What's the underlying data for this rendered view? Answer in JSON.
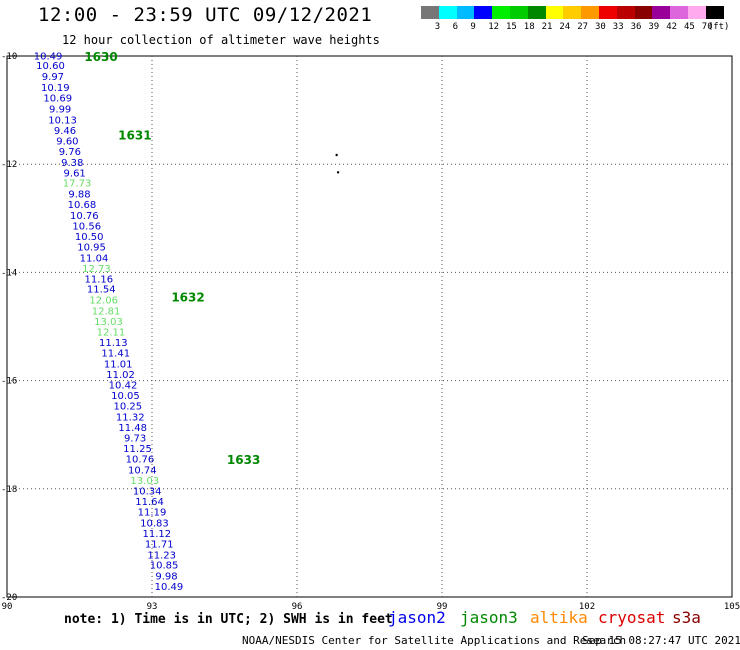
{
  "header": {
    "title": "12:00 - 23:59 UTC 09/12/2021",
    "subtitle": "12 hour collection of altimeter wave heights"
  },
  "colorbar": {
    "colors": [
      "#777777",
      "#00ffff",
      "#00bbff",
      "#0000ff",
      "#00ee00",
      "#00cc00",
      "#008800",
      "#ffff00",
      "#ffcc00",
      "#ff9900",
      "#ee0000",
      "#bb0000",
      "#880000",
      "#990099",
      "#dd66dd",
      "#ffaaee",
      "#000000"
    ],
    "labels": [
      "3",
      "6",
      "9",
      "12",
      "15",
      "18",
      "21",
      "24",
      "27",
      "30",
      "33",
      "36",
      "39",
      "42",
      "45",
      "70"
    ],
    "unit": "(ft)"
  },
  "map": {
    "lon_range": [
      90,
      105
    ],
    "lat_range": [
      -20,
      -10
    ],
    "x_ticks": [
      "90",
      "93",
      "96",
      "99",
      "102",
      "105"
    ],
    "y_ticks": [
      "-10",
      "-12",
      "-14",
      "-16",
      "-18",
      "-20"
    ],
    "grid": "dotted",
    "coast_marks": [
      {
        "lon": 96.82,
        "lat": -11.83
      },
      {
        "lon": 96.85,
        "lat": -12.15
      }
    ]
  },
  "passes": [
    {
      "id": "1630",
      "lon": 91.6,
      "lat": -10.0
    },
    {
      "id": "1631",
      "lon": 92.3,
      "lat": -11.45
    },
    {
      "id": "1632",
      "lon": 93.4,
      "lat": -14.45
    },
    {
      "id": "1633",
      "lon": 94.55,
      "lat": -17.45
    }
  ],
  "observations": [
    {
      "lon": 90.85,
      "lat": -9.99,
      "swh": "10.49",
      "sat": "jason2"
    },
    {
      "lon": 90.9,
      "lat": -10.17,
      "swh": "10.60",
      "sat": "jason2"
    },
    {
      "lon": 90.95,
      "lat": -10.37,
      "swh": "9.97",
      "sat": "jason2"
    },
    {
      "lon": 91.0,
      "lat": -10.57,
      "swh": "10.19",
      "sat": "jason2"
    },
    {
      "lon": 91.05,
      "lat": -10.77,
      "swh": "10.69",
      "sat": "jason2"
    },
    {
      "lon": 91.1,
      "lat": -10.97,
      "swh": "9.99",
      "sat": "jason2"
    },
    {
      "lon": 91.15,
      "lat": -11.17,
      "swh": "10.13",
      "sat": "jason2"
    },
    {
      "lon": 91.2,
      "lat": -11.37,
      "swh": "9.46",
      "sat": "jason2"
    },
    {
      "lon": 91.25,
      "lat": -11.56,
      "swh": "9.60",
      "sat": "jason2"
    },
    {
      "lon": 91.3,
      "lat": -11.76,
      "swh": "9.76",
      "sat": "jason2"
    },
    {
      "lon": 91.35,
      "lat": -11.96,
      "swh": "9.38",
      "sat": "jason2"
    },
    {
      "lon": 91.4,
      "lat": -12.15,
      "swh": "9.61",
      "sat": "jason2"
    },
    {
      "lon": 91.45,
      "lat": -12.34,
      "swh": "17.73",
      "sat": "jason3"
    },
    {
      "lon": 91.5,
      "lat": -12.54,
      "swh": "9.88",
      "sat": "jason2"
    },
    {
      "lon": 91.55,
      "lat": -12.74,
      "swh": "10.68",
      "sat": "jason2"
    },
    {
      "lon": 91.6,
      "lat": -12.94,
      "swh": "10.76",
      "sat": "jason2"
    },
    {
      "lon": 91.65,
      "lat": -13.13,
      "swh": "10.56",
      "sat": "jason2"
    },
    {
      "lon": 91.7,
      "lat": -13.33,
      "swh": "10.50",
      "sat": "jason2"
    },
    {
      "lon": 91.75,
      "lat": -13.52,
      "swh": "10.95",
      "sat": "jason2"
    },
    {
      "lon": 91.8,
      "lat": -13.72,
      "swh": "11.04",
      "sat": "jason2"
    },
    {
      "lon": 91.85,
      "lat": -13.92,
      "swh": "12.73",
      "sat": "jason3"
    },
    {
      "lon": 91.9,
      "lat": -14.11,
      "swh": "11.16",
      "sat": "jason2"
    },
    {
      "lon": 91.95,
      "lat": -14.3,
      "swh": "11.54",
      "sat": "jason2"
    },
    {
      "lon": 92.0,
      "lat": -14.5,
      "swh": "12.06",
      "sat": "jason3"
    },
    {
      "lon": 92.05,
      "lat": -14.7,
      "swh": "12.81",
      "sat": "jason3"
    },
    {
      "lon": 92.1,
      "lat": -14.9,
      "swh": "13.03",
      "sat": "jason3"
    },
    {
      "lon": 92.15,
      "lat": -15.09,
      "swh": "12.11",
      "sat": "jason3"
    },
    {
      "lon": 92.2,
      "lat": -15.29,
      "swh": "11.13",
      "sat": "jason2"
    },
    {
      "lon": 92.25,
      "lat": -15.48,
      "swh": "11.41",
      "sat": "jason2"
    },
    {
      "lon": 92.3,
      "lat": -15.68,
      "swh": "11.01",
      "sat": "jason2"
    },
    {
      "lon": 92.35,
      "lat": -15.88,
      "swh": "11.02",
      "sat": "jason2"
    },
    {
      "lon": 92.4,
      "lat": -16.07,
      "swh": "10.42",
      "sat": "jason2"
    },
    {
      "lon": 92.45,
      "lat": -16.27,
      "swh": "10.05",
      "sat": "jason2"
    },
    {
      "lon": 92.5,
      "lat": -16.46,
      "swh": "10.25",
      "sat": "jason2"
    },
    {
      "lon": 92.55,
      "lat": -16.66,
      "swh": "11.32",
      "sat": "jason2"
    },
    {
      "lon": 92.6,
      "lat": -16.86,
      "swh": "11.48",
      "sat": "jason2"
    },
    {
      "lon": 92.65,
      "lat": -17.05,
      "swh": "9.73",
      "sat": "jason2"
    },
    {
      "lon": 92.7,
      "lat": -17.25,
      "swh": "11.25",
      "sat": "jason2"
    },
    {
      "lon": 92.75,
      "lat": -17.44,
      "swh": "10.76",
      "sat": "jason2"
    },
    {
      "lon": 92.8,
      "lat": -17.64,
      "swh": "10.74",
      "sat": "jason2"
    },
    {
      "lon": 92.85,
      "lat": -17.84,
      "swh": "13.03",
      "sat": "jason3"
    },
    {
      "lon": 92.9,
      "lat": -18.03,
      "swh": "10.34",
      "sat": "jason2"
    },
    {
      "lon": 92.95,
      "lat": -18.23,
      "swh": "11.64",
      "sat": "jason2"
    },
    {
      "lon": 93.0,
      "lat": -18.42,
      "swh": "11.19",
      "sat": "jason2"
    },
    {
      "lon": 93.05,
      "lat": -18.62,
      "swh": "10.83",
      "sat": "jason2"
    },
    {
      "lon": 93.1,
      "lat": -18.82,
      "swh": "11.12",
      "sat": "jason2"
    },
    {
      "lon": 93.15,
      "lat": -19.01,
      "swh": "11.71",
      "sat": "jason2"
    },
    {
      "lon": 93.2,
      "lat": -19.21,
      "swh": "11.23",
      "sat": "jason2"
    },
    {
      "lon": 93.25,
      "lat": -19.4,
      "swh": "10.85",
      "sat": "jason2"
    },
    {
      "lon": 93.3,
      "lat": -19.6,
      "swh": "9.98",
      "sat": "jason2"
    },
    {
      "lon": 93.35,
      "lat": -19.8,
      "swh": "10.49",
      "sat": "jason2"
    }
  ],
  "sat_colors": {
    "jason2": "#0000cc",
    "jason3": "#66dd66"
  },
  "footer": {
    "note": "note: 1) Time is in UTC; 2) SWH is in feet",
    "satellites": [
      {
        "name": "jason2",
        "color": "#0000ee"
      },
      {
        "name": "jason3",
        "color": "#008800"
      },
      {
        "name": "altika",
        "color": "#ff8800"
      },
      {
        "name": "cryosat",
        "color": "#dd0000"
      },
      {
        "name": "s3a",
        "color": "#880000"
      }
    ],
    "credit": "NOAA/NESDIS Center for Satellite Applications and Research",
    "timestamp": "Sep 15 08:27:47 UTC 2021"
  }
}
